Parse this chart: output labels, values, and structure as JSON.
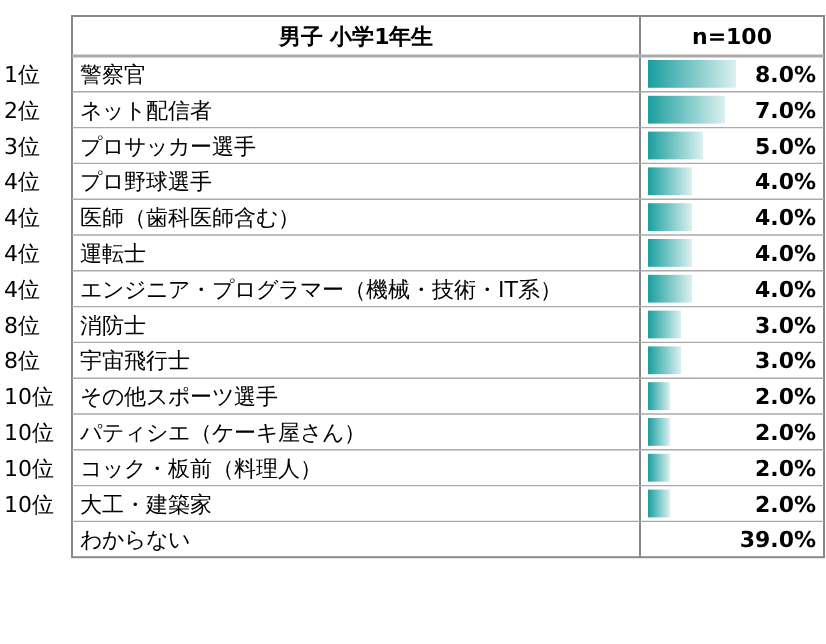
{
  "chart_data": {
    "type": "bar",
    "orientation": "horizontal",
    "title": "男子 小学1年生",
    "subtitle": "n=100",
    "categories": [
      "警察官",
      "ネット配信者",
      "プロサッカー選手",
      "プロ野球選手",
      "医師（歯科医師含む）",
      "運転士",
      "エンジニア・プログラマー（機械・技術・IT系）",
      "消防士",
      "宇宙飛行士",
      "その他スポーツ選手",
      "パティシエ（ケーキ屋さん）",
      "コック・板前（料理人）",
      "大工・建築家",
      "わからない"
    ],
    "values": [
      8.0,
      7.0,
      5.0,
      4.0,
      4.0,
      4.0,
      4.0,
      3.0,
      3.0,
      2.0,
      2.0,
      2.0,
      2.0,
      null
    ],
    "value_labels": [
      "8.0%",
      "7.0%",
      "5.0%",
      "4.0%",
      "4.0%",
      "4.0%",
      "4.0%",
      "3.0%",
      "3.0%",
      "2.0%",
      "2.0%",
      "2.0%",
      "2.0%",
      "39.0%"
    ],
    "color": "#1a9e9e",
    "annotations": [
      "1位",
      "2位",
      "3位",
      "4位",
      "4位",
      "4位",
      "4位",
      "8位",
      "8位",
      "10位",
      "10位",
      "10位",
      "10位"
    ]
  }
}
